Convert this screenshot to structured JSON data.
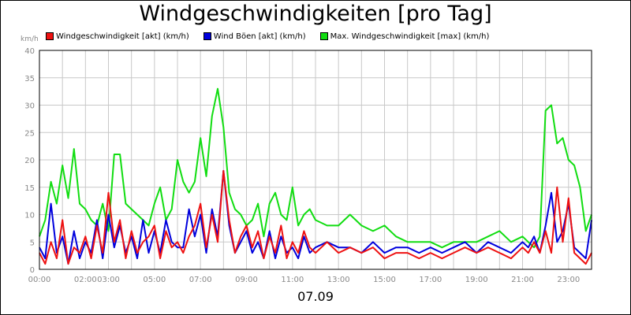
{
  "chart_data": {
    "type": "line",
    "title": "Windgeschwindigkeiten [pro Tag]",
    "xlabel": "07.09",
    "ylabel": "km/h",
    "ylim": [
      0,
      40
    ],
    "yticks": [
      "0",
      "5",
      "10",
      "15",
      "20",
      "25",
      "30",
      "35",
      "40"
    ],
    "xlim_hours": [
      0,
      24
    ],
    "xticks": [
      "00:00",
      "02:00",
      "03:00",
      "05:00",
      "07:00",
      "09:00",
      "11:00",
      "13:00",
      "15:00",
      "17:00",
      "19:00",
      "21:00",
      "23:00"
    ],
    "xtick_hours": [
      0,
      2,
      3,
      5,
      7,
      9,
      11,
      13,
      15,
      17,
      19,
      21,
      23
    ],
    "grid": true,
    "legend_position": "top-left",
    "series": [
      {
        "name": "Windgeschwindigkeit [akt] (km/h)",
        "color": "#ee1111",
        "x": [
          0,
          0.25,
          0.5,
          0.75,
          1.0,
          1.25,
          1.5,
          1.75,
          2.0,
          2.25,
          2.5,
          2.75,
          3.0,
          3.25,
          3.5,
          3.75,
          4.0,
          4.25,
          4.5,
          4.75,
          5.0,
          5.25,
          5.5,
          5.75,
          6.0,
          6.25,
          6.5,
          6.75,
          7.0,
          7.25,
          7.5,
          7.75,
          8.0,
          8.25,
          8.5,
          8.75,
          9.0,
          9.25,
          9.5,
          9.75,
          10.0,
          10.25,
          10.5,
          10.75,
          11.0,
          11.25,
          11.5,
          11.75,
          12.0,
          12.5,
          13.0,
          13.5,
          14.0,
          14.5,
          15.0,
          15.5,
          16.0,
          16.5,
          17.0,
          17.5,
          18.0,
          18.5,
          19.0,
          19.5,
          20.0,
          20.5,
          21.0,
          21.25,
          21.5,
          21.75,
          22.0,
          22.25,
          22.5,
          22.75,
          23.0,
          23.25,
          23.5,
          23.75,
          24.0
        ],
        "values": [
          3,
          1,
          5,
          2,
          9,
          1,
          4,
          3,
          6,
          2,
          8,
          3,
          14,
          5,
          9,
          2,
          7,
          3,
          5,
          6,
          8,
          2,
          7,
          4,
          5,
          3,
          6,
          8,
          12,
          4,
          10,
          5,
          18,
          9,
          3,
          6,
          8,
          4,
          7,
          2,
          6,
          3,
          8,
          2,
          5,
          3,
          7,
          4,
          3,
          5,
          3,
          4,
          3,
          4,
          2,
          3,
          3,
          2,
          3,
          2,
          3,
          4,
          3,
          4,
          3,
          2,
          4,
          3,
          5,
          3,
          7,
          3,
          15,
          5,
          13,
          3,
          2,
          1,
          3
        ]
      },
      {
        "name": "Wind Böen [akt] (km/h)",
        "color": "#0000dd",
        "x": [
          0,
          0.25,
          0.5,
          0.75,
          1.0,
          1.25,
          1.5,
          1.75,
          2.0,
          2.25,
          2.5,
          2.75,
          3.0,
          3.25,
          3.5,
          3.75,
          4.0,
          4.25,
          4.5,
          4.75,
          5.0,
          5.25,
          5.5,
          5.75,
          6.0,
          6.25,
          6.5,
          6.75,
          7.0,
          7.25,
          7.5,
          7.75,
          8.0,
          8.25,
          8.5,
          8.75,
          9.0,
          9.25,
          9.5,
          9.75,
          10.0,
          10.25,
          10.5,
          10.75,
          11.0,
          11.25,
          11.5,
          11.75,
          12.0,
          12.5,
          13.0,
          13.5,
          14.0,
          14.5,
          15.0,
          15.5,
          16.0,
          16.5,
          17.0,
          17.5,
          18.0,
          18.5,
          19.0,
          19.5,
          20.0,
          20.5,
          21.0,
          21.25,
          21.5,
          21.75,
          22.0,
          22.25,
          22.5,
          22.75,
          23.0,
          23.25,
          23.5,
          23.75,
          24.0
        ],
        "values": [
          4,
          2,
          12,
          3,
          6,
          1,
          7,
          2,
          5,
          3,
          9,
          2,
          10,
          4,
          8,
          3,
          6,
          2,
          9,
          3,
          7,
          3,
          9,
          5,
          4,
          4,
          11,
          6,
          10,
          3,
          11,
          6,
          18,
          8,
          3,
          5,
          7,
          3,
          5,
          2,
          7,
          2,
          6,
          3,
          4,
          2,
          6,
          3,
          4,
          5,
          4,
          4,
          3,
          5,
          3,
          4,
          4,
          3,
          4,
          3,
          4,
          5,
          3,
          5,
          4,
          3,
          5,
          4,
          6,
          3,
          8,
          14,
          5,
          7,
          12,
          4,
          3,
          2,
          9
        ]
      },
      {
        "name": "Max. Windgeschwindigkeit [max] (km/h)",
        "color": "#11dd11",
        "x": [
          0,
          0.25,
          0.5,
          0.75,
          1.0,
          1.25,
          1.5,
          1.75,
          2.0,
          2.25,
          2.5,
          2.75,
          3.0,
          3.25,
          3.5,
          3.75,
          4.0,
          4.25,
          4.5,
          4.75,
          5.0,
          5.25,
          5.5,
          5.75,
          6.0,
          6.25,
          6.5,
          6.75,
          7.0,
          7.25,
          7.5,
          7.75,
          8.0,
          8.25,
          8.5,
          8.75,
          9.0,
          9.25,
          9.5,
          9.75,
          10.0,
          10.25,
          10.5,
          10.75,
          11.0,
          11.25,
          11.5,
          11.75,
          12.0,
          12.5,
          13.0,
          13.5,
          14.0,
          14.5,
          15.0,
          15.5,
          16.0,
          16.5,
          17.0,
          17.5,
          18.0,
          18.5,
          19.0,
          19.5,
          20.0,
          20.5,
          21.0,
          21.25,
          21.5,
          21.75,
          22.0,
          22.25,
          22.5,
          22.75,
          23.0,
          23.25,
          23.5,
          23.75,
          24.0
        ],
        "values": [
          6,
          9,
          16,
          12,
          19,
          13,
          22,
          12,
          11,
          9,
          8,
          12,
          7,
          21,
          21,
          12,
          11,
          10,
          9,
          8,
          12,
          15,
          9,
          11,
          20,
          16,
          14,
          16,
          24,
          17,
          28,
          33,
          26,
          14,
          11,
          10,
          8,
          9,
          12,
          6,
          12,
          14,
          10,
          9,
          15,
          8,
          10,
          11,
          9,
          8,
          8,
          10,
          8,
          7,
          8,
          6,
          5,
          5,
          5,
          4,
          5,
          5,
          5,
          6,
          7,
          5,
          6,
          5,
          4,
          6,
          29,
          30,
          23,
          24,
          20,
          19,
          15,
          7,
          10
        ]
      }
    ]
  }
}
